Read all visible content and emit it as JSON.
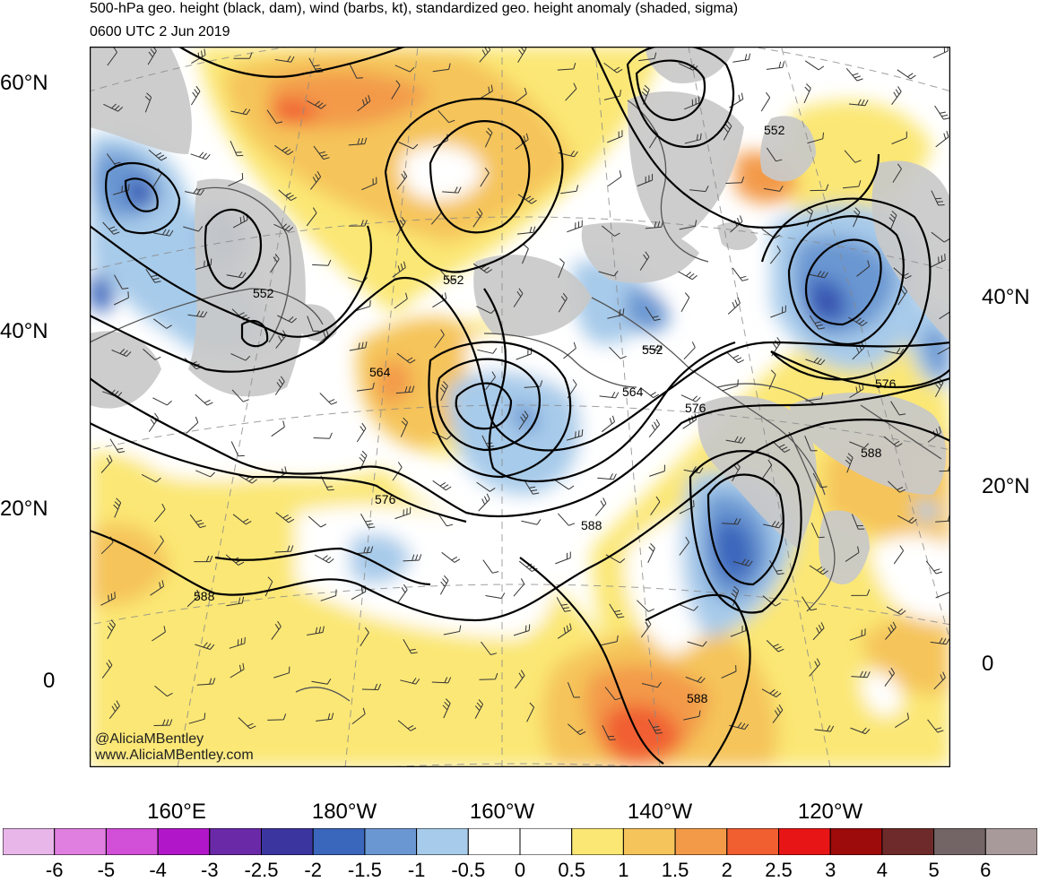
{
  "header": {
    "title": "500-hPa geo. height (black, dam), wind (barbs, kt), standardized geo. height anomaly (shaded, sigma)",
    "valid_time": "0600 UTC 2 Jun 2019"
  },
  "axes": {
    "lat_left": [
      "60°N",
      "40°N",
      "20°N",
      "0"
    ],
    "lat_right": [
      "40°N",
      "20°N",
      "0"
    ],
    "lon_bottom": [
      "160°E",
      "180°W",
      "160°W",
      "140°W",
      "120°W"
    ]
  },
  "contour_labels": [
    "552",
    "552",
    "552",
    "552",
    "564",
    "564",
    "576",
    "576",
    "576",
    "588",
    "588",
    "588",
    "588"
  ],
  "credits": {
    "handle": "@AliciaMBentley",
    "site": "www.AliciaMBentley.com"
  },
  "colorbar": {
    "colors": [
      "#e8b6e8",
      "#e07fe0",
      "#d24fd8",
      "#b117c8",
      "#6a2aa8",
      "#3b35a0",
      "#3a66bc",
      "#6a97d2",
      "#a7cbea",
      "#ffffff",
      "#ffffff",
      "#fbe774",
      "#f5c45a",
      "#f39a48",
      "#f15e30",
      "#e81516",
      "#9e0b0b",
      "#6e2a2a",
      "#736565",
      "#a89a9a"
    ],
    "labels": [
      "-6",
      "-5",
      "-4",
      "-3",
      "-2.5",
      "-2",
      "-1.5",
      "-1",
      "-0.5",
      "0",
      "0.5",
      "1",
      "1.5",
      "2",
      "2.5",
      "3",
      "4",
      "5",
      "6"
    ]
  }
}
